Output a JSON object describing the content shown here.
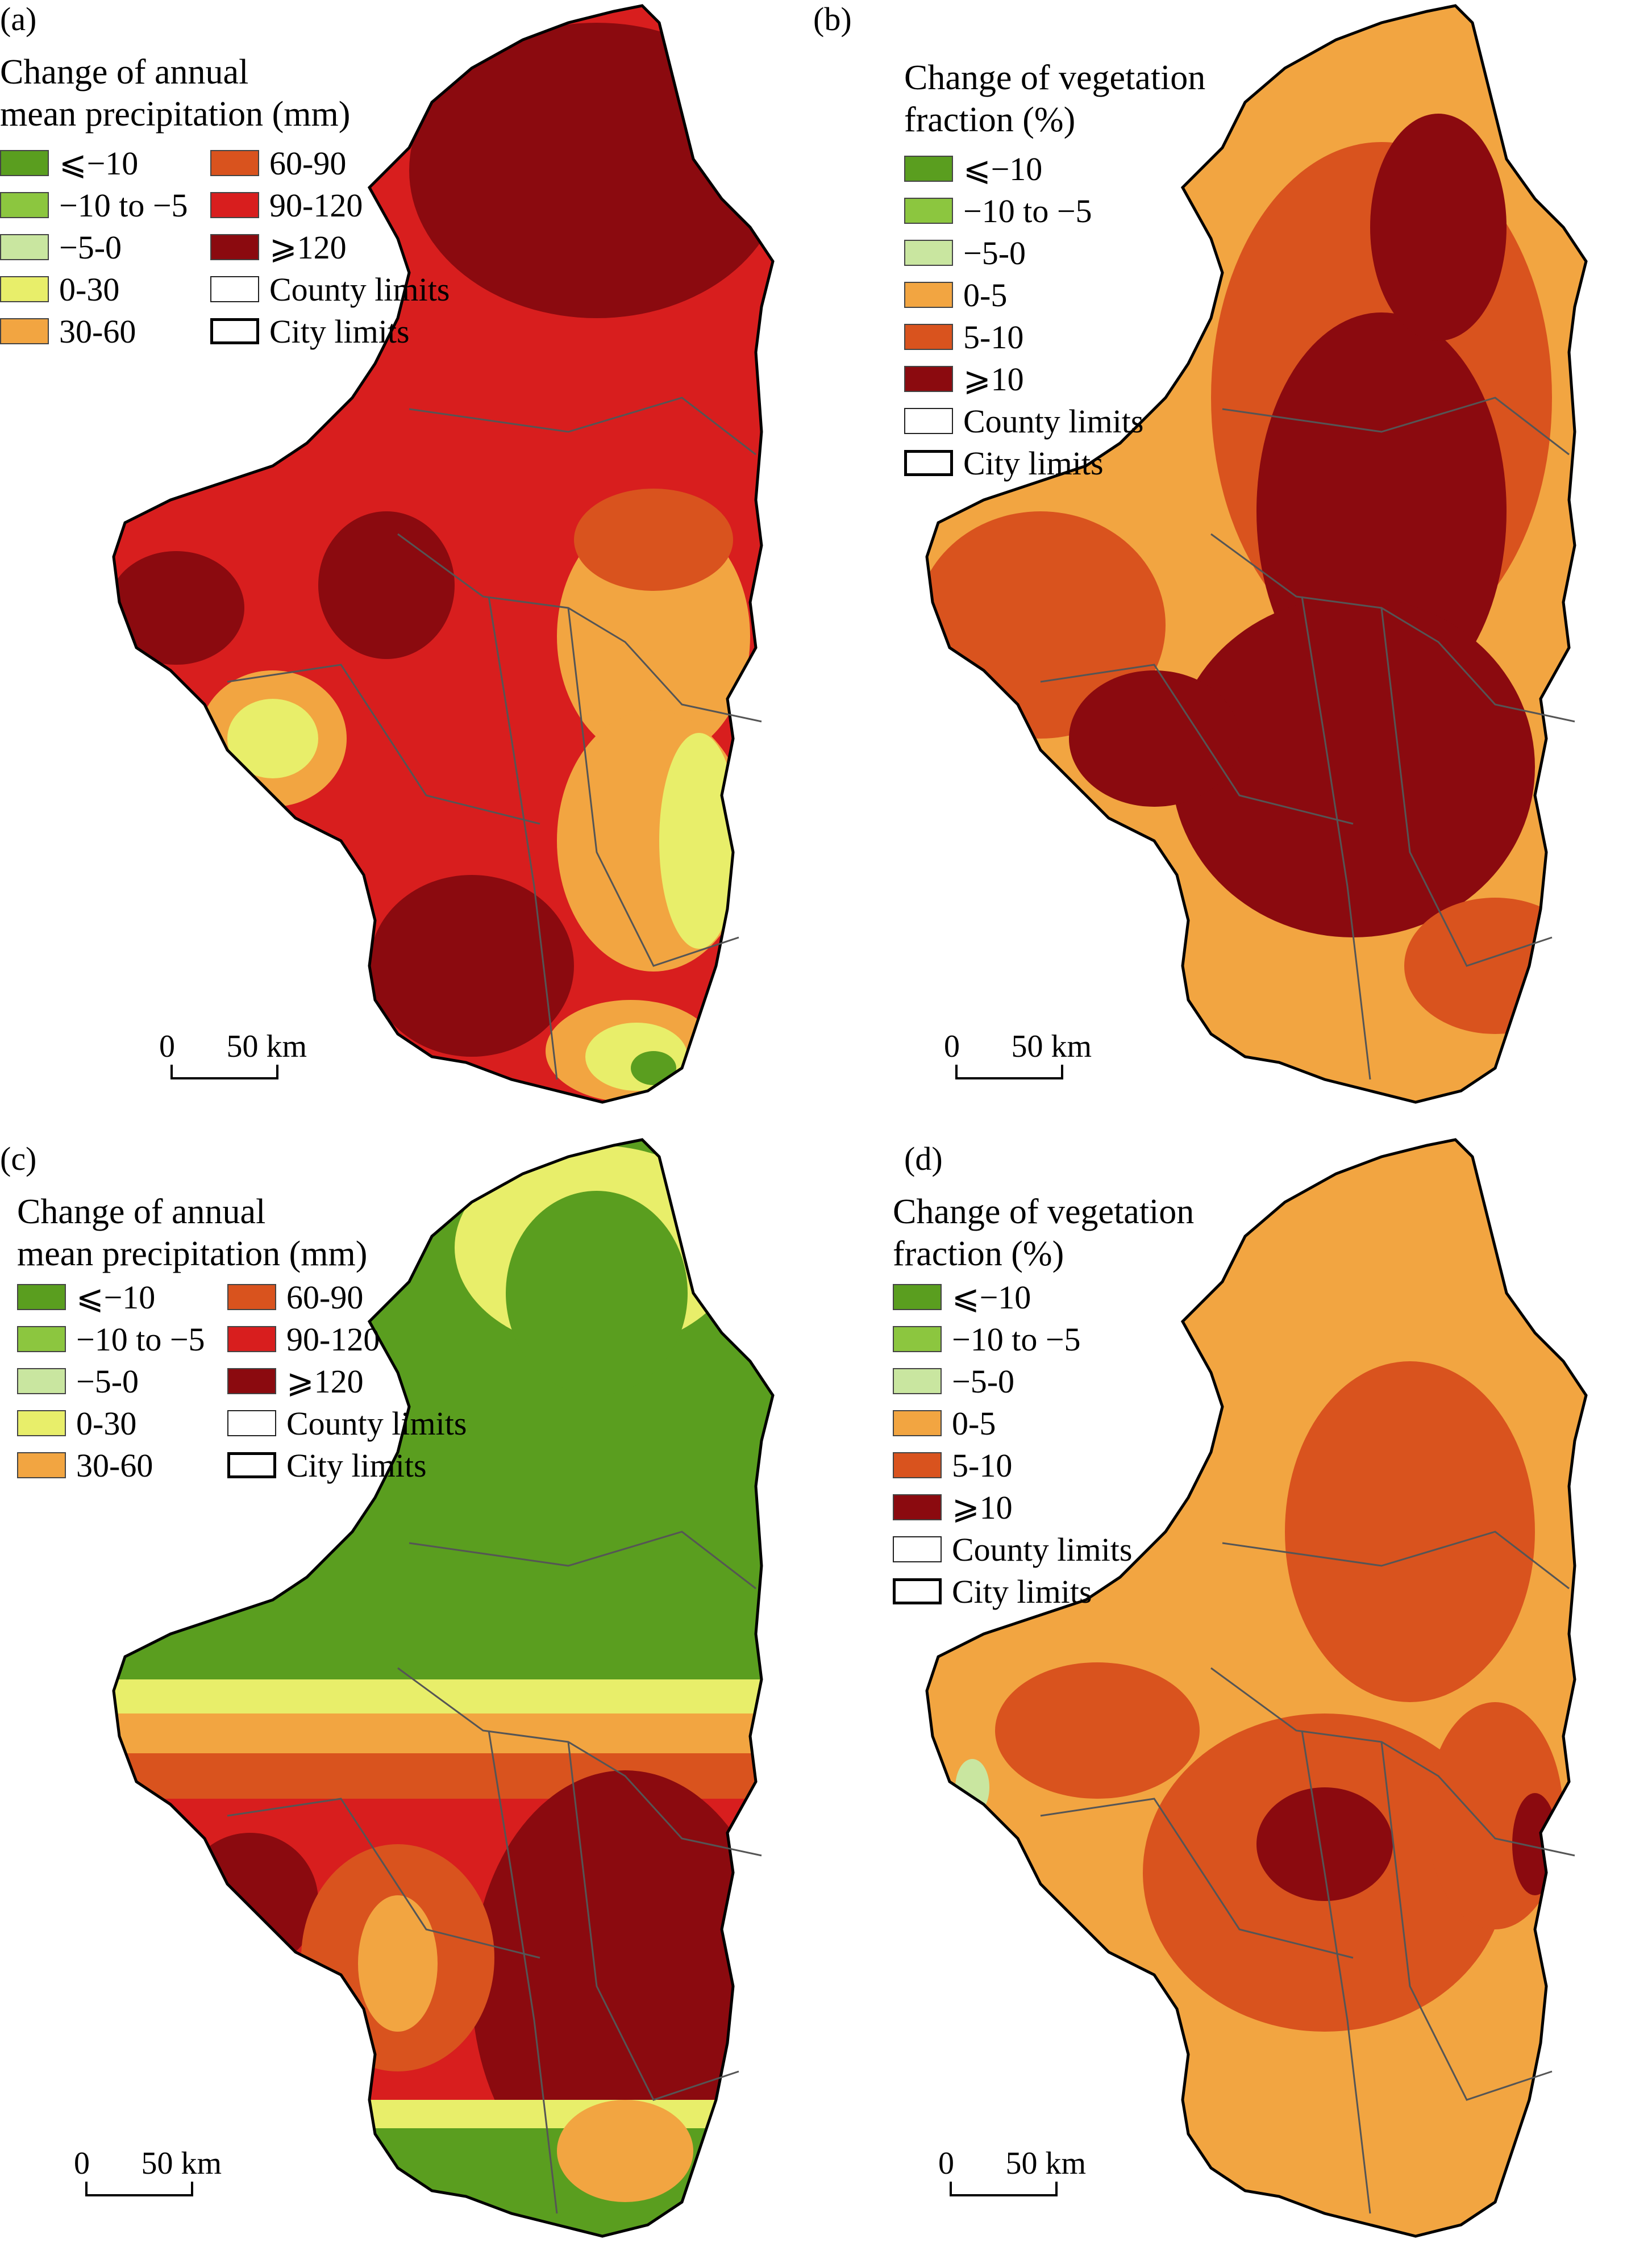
{
  "panels": [
    {
      "label": "(a)",
      "legend_title": [
        "Change of annual",
        "mean precipitation (mm)"
      ],
      "legend_layout": "two-column",
      "legend": [
        {
          "label": "⩽−10",
          "color": "#5a9e1f"
        },
        {
          "label": "−10 to −5",
          "color": "#8cc63f"
        },
        {
          "label": "−5-0",
          "color": "#c9e6a0"
        },
        {
          "label": "0-30",
          "color": "#e8ee6a"
        },
        {
          "label": "30-60",
          "color": "#f2a541"
        },
        {
          "label": "60-90",
          "color": "#d9531e"
        },
        {
          "label": "90-120",
          "color": "#d81e1e"
        },
        {
          "label": "⩾120",
          "color": "#8b0a0f"
        },
        {
          "label": "County limits",
          "type": "county"
        },
        {
          "label": "City limits",
          "type": "city"
        }
      ],
      "scale": {
        "zero": "0",
        "dist": "50 km"
      }
    },
    {
      "label": "(b)",
      "legend_title": [
        "Change of vegetation",
        "fraction (%)"
      ],
      "legend_layout": "one-column",
      "legend": [
        {
          "label": "⩽−10",
          "color": "#5a9e1f"
        },
        {
          "label": "−10 to −5",
          "color": "#8cc63f"
        },
        {
          "label": "−5-0",
          "color": "#c9e6a0"
        },
        {
          "label": "0-5",
          "color": "#f2a541"
        },
        {
          "label": "5-10",
          "color": "#d9531e"
        },
        {
          "label": "⩾10",
          "color": "#8b0a0f"
        },
        {
          "label": "County limits",
          "type": "county"
        },
        {
          "label": "City limits",
          "type": "city"
        }
      ],
      "scale": {
        "zero": "0",
        "dist": "50 km"
      }
    },
    {
      "label": "(c)",
      "legend_title": [
        "Change of annual",
        "mean precipitation (mm)"
      ],
      "legend_layout": "two-column",
      "legend": [
        {
          "label": "⩽−10",
          "color": "#5a9e1f"
        },
        {
          "label": "−10 to −5",
          "color": "#8cc63f"
        },
        {
          "label": "−5-0",
          "color": "#c9e6a0"
        },
        {
          "label": "0-30",
          "color": "#e8ee6a"
        },
        {
          "label": "30-60",
          "color": "#f2a541"
        },
        {
          "label": "60-90",
          "color": "#d9531e"
        },
        {
          "label": "90-120",
          "color": "#d81e1e"
        },
        {
          "label": "⩾120",
          "color": "#8b0a0f"
        },
        {
          "label": "County limits",
          "type": "county"
        },
        {
          "label": "City limits",
          "type": "city"
        }
      ],
      "scale": {
        "zero": "0",
        "dist": "50 km"
      }
    },
    {
      "label": "(d)",
      "legend_title": [
        "Change of vegetation",
        "fraction (%)"
      ],
      "legend_layout": "one-column",
      "legend": [
        {
          "label": "⩽−10",
          "color": "#5a9e1f"
        },
        {
          "label": "−10 to −5",
          "color": "#8cc63f"
        },
        {
          "label": "−5-0",
          "color": "#c9e6a0"
        },
        {
          "label": "0-5",
          "color": "#f2a541"
        },
        {
          "label": "5-10",
          "color": "#d9531e"
        },
        {
          "label": "⩾10",
          "color": "#8b0a0f"
        },
        {
          "label": "County limits",
          "type": "county"
        },
        {
          "label": "City limits",
          "type": "city"
        }
      ],
      "scale": {
        "zero": "0",
        "dist": "50 km"
      }
    }
  ]
}
